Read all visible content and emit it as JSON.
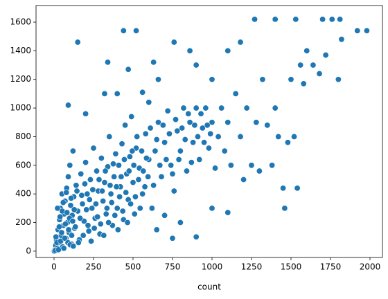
{
  "chart_data": {
    "type": "scatter",
    "x_label": "count",
    "color": "#1f77b4",
    "xlim": [
      -114,
      2079
    ],
    "ylim": [
      -44,
      1716
    ],
    "xticks": [
      0,
      250,
      500,
      750,
      1000,
      1250,
      1500,
      1750,
      2000
    ],
    "yticks": [
      0,
      200,
      400,
      600,
      800,
      1000,
      1200,
      1400,
      1600
    ],
    "x": [
      5,
      10,
      15,
      20,
      25,
      30,
      35,
      40,
      45,
      50,
      55,
      60,
      65,
      70,
      75,
      80,
      85,
      90,
      95,
      100,
      105,
      110,
      115,
      120,
      125,
      130,
      140,
      150,
      160,
      170,
      180,
      190,
      200,
      210,
      220,
      230,
      240,
      250,
      260,
      270,
      280,
      290,
      300,
      310,
      320,
      330,
      340,
      350,
      360,
      370,
      380,
      390,
      400,
      410,
      420,
      430,
      440,
      450,
      460,
      470,
      480,
      490,
      500,
      510,
      520,
      540,
      560,
      580,
      600,
      620,
      640,
      660,
      680,
      700,
      720,
      740,
      760,
      780,
      800,
      820,
      840,
      860,
      880,
      900,
      920,
      940,
      960,
      980,
      1000,
      1020,
      1040,
      1060,
      1080,
      1100,
      1120,
      1150,
      1180,
      1200,
      1220,
      1250,
      1280,
      1300,
      1320,
      1350,
      1380,
      1400,
      1420,
      1450,
      1460,
      1480,
      1500,
      1520,
      1540,
      1560,
      1580,
      1600,
      1640,
      1680,
      1700,
      1720,
      1760,
      1800,
      1810,
      1820,
      1920,
      1980,
      150,
      440,
      520,
      340,
      760,
      860,
      1270,
      1400,
      1530,
      400,
      560,
      630,
      200,
      90,
      1100,
      1180,
      660,
      900,
      1000,
      320,
      470,
      600,
      750,
      900,
      800,
      1000,
      650,
      700,
      1100,
      2,
      8,
      12,
      18,
      22,
      28,
      33,
      38,
      42,
      48,
      52,
      58,
      62,
      68,
      72,
      78,
      82,
      88,
      92,
      98,
      102,
      108,
      112,
      118,
      122,
      128,
      135,
      145,
      155,
      165,
      175,
      185,
      195,
      205,
      215,
      225,
      235,
      245,
      255,
      265,
      275,
      285,
      295,
      305,
      315,
      325,
      335,
      345,
      355,
      365,
      375,
      385,
      395,
      405,
      415,
      425,
      435,
      445,
      455,
      465,
      475,
      485,
      495,
      505,
      515,
      525,
      535,
      545,
      555,
      565,
      575,
      585,
      595,
      610,
      630,
      650,
      670,
      690,
      710,
      730,
      750,
      770,
      790,
      810,
      830,
      850,
      870,
      890,
      910,
      930,
      950,
      970,
      990
    ],
    "values": [
      10,
      40,
      80,
      20,
      150,
      60,
      220,
      300,
      110,
      400,
      30,
      180,
      260,
      350,
      90,
      440,
      200,
      520,
      130,
      600,
      320,
      50,
      250,
      700,
      380,
      160,
      460,
      280,
      80,
      540,
      330,
      210,
      620,
      400,
      140,
      500,
      300,
      720,
      230,
      560,
      420,
      120,
      650,
      350,
      480,
      260,
      590,
      800,
      400,
      180,
      520,
      680,
      300,
      600,
      450,
      750,
      220,
      880,
      540,
      360,
      660,
      940,
      480,
      260,
      720,
      580,
      400,
      820,
      640,
      300,
      700,
      900,
      520,
      760,
      980,
      600,
      420,
      840,
      700,
      1000,
      560,
      900,
      760,
      1000,
      640,
      860,
      1000,
      720,
      900,
      580,
      800,
      1000,
      700,
      900,
      600,
      1100,
      800,
      500,
      1000,
      600,
      900,
      560,
      1200,
      880,
      600,
      1000,
      800,
      440,
      300,
      760,
      1200,
      800,
      440,
      1300,
      1170,
      1400,
      1300,
      1240,
      1620,
      1370,
      1620,
      1200,
      1620,
      1480,
      1540,
      1540,
      1460,
      1540,
      1540,
      1320,
      1460,
      1400,
      1620,
      1620,
      1620,
      1100,
      1110,
      1320,
      960,
      1020,
      1400,
      1460,
      1200,
      1300,
      1200,
      1100,
      1270,
      1040,
      90,
      100,
      200,
      300,
      150,
      250,
      270,
      0,
      5,
      100,
      60,
      300,
      10,
      170,
      240,
      70,
      130,
      280,
      340,
      20,
      90,
      190,
      410,
      270,
      60,
      150,
      230,
      45,
      370,
      110,
      210,
      35,
      290,
      170,
      420,
      60,
      230,
      390,
      110,
      470,
      290,
      180,
      360,
      70,
      430,
      160,
      330,
      240,
      500,
      190,
      420,
      110,
      560,
      300,
      200,
      460,
      340,
      610,
      250,
      450,
      150,
      380,
      520,
      280,
      640,
      410,
      200,
      560,
      330,
      700,
      600,
      380,
      800,
      500,
      300,
      700,
      560,
      450,
      650,
      520,
      860,
      460,
      780,
      600,
      880,
      640,
      820,
      540,
      920,
      640,
      860,
      780,
      960,
      620,
      880,
      800,
      960,
      760,
      880,
      820
    ]
  }
}
